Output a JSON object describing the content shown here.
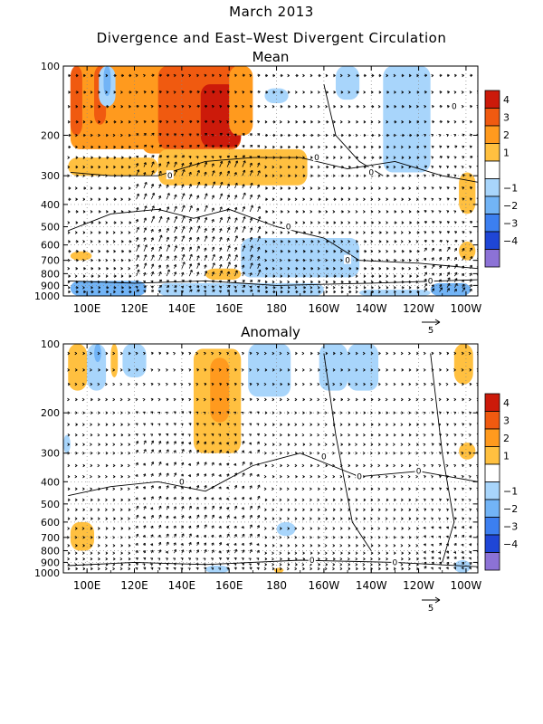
{
  "title": "March 2013",
  "subtitle": "Divergence and East–West Divergent Circulation",
  "colors": {
    "positive": [
      "#ffc040",
      "#ff9a1e",
      "#f05a10",
      "#cc1a0a"
    ],
    "negative": [
      "#a8d5fb",
      "#72b4f6",
      "#3c7ff0",
      "#1f46d6",
      "#8c72d6"
    ]
  },
  "chart_data": [
    {
      "type": "heatmap",
      "title": "Mean",
      "x_ticks": [
        "100E",
        "120E",
        "140E",
        "160E",
        "180",
        "160W",
        "140W",
        "120W",
        "100W"
      ],
      "x_lon": [
        100,
        120,
        140,
        160,
        180,
        200,
        220,
        240,
        260
      ],
      "xlim": [
        90,
        265
      ],
      "y_ticks": [
        "100",
        "200",
        "300",
        "400",
        "500",
        "600",
        "700",
        "800",
        "900",
        "1000"
      ],
      "y_pressure": [
        100,
        200,
        300,
        400,
        500,
        600,
        700,
        800,
        900,
        1000
      ],
      "ylim": [
        100,
        1000
      ],
      "y_scale": "log",
      "grid": true,
      "colorbar": {
        "labels": [
          "4",
          "3",
          "2",
          "1",
          "−1",
          "−2",
          "−3",
          "−4"
        ],
        "levels": [
          4,
          3,
          2,
          1,
          -1,
          -2,
          -3,
          -4
        ]
      },
      "contour_labels": [
        "0",
        "0",
        "0",
        "0",
        "0",
        "0",
        "0"
      ],
      "vector_reference_label": "5",
      "vector_reference_value": 5,
      "regions": [
        {
          "level": 2,
          "lon": [
            93,
            153
          ],
          "p": [
            100,
            230
          ]
        },
        {
          "level": 3,
          "lon": [
            93,
            98
          ],
          "p": [
            100,
            200
          ]
        },
        {
          "level": 3,
          "lon": [
            103,
            108
          ],
          "p": [
            100,
            180
          ]
        },
        {
          "level": 2,
          "lon": [
            112,
            120
          ],
          "p": [
            100,
            200
          ]
        },
        {
          "level": 2,
          "lon": [
            123,
            135
          ],
          "p": [
            100,
            240
          ]
        },
        {
          "level": 3,
          "lon": [
            130,
            165
          ],
          "p": [
            100,
            230
          ]
        },
        {
          "level": 4,
          "lon": [
            148,
            165
          ],
          "p": [
            120,
            225
          ]
        },
        {
          "level": 2,
          "lon": [
            160,
            170
          ],
          "p": [
            100,
            200
          ]
        },
        {
          "level": 1,
          "lon": [
            130,
            193
          ],
          "p": [
            230,
            330
          ]
        },
        {
          "level": 1,
          "lon": [
            92,
            130
          ],
          "p": [
            250,
            300
          ]
        },
        {
          "level": -1,
          "lon": [
            105,
            112
          ],
          "p": [
            100,
            150
          ]
        },
        {
          "level": -2,
          "lon": [
            107,
            110
          ],
          "p": [
            100,
            135
          ]
        },
        {
          "level": -1,
          "lon": [
            175,
            185
          ],
          "p": [
            125,
            145
          ]
        },
        {
          "level": -1,
          "lon": [
            205,
            215
          ],
          "p": [
            100,
            140
          ]
        },
        {
          "level": -1,
          "lon": [
            225,
            245
          ],
          "p": [
            100,
            290
          ]
        },
        {
          "level": -1,
          "lon": [
            165,
            215
          ],
          "p": [
            560,
            830
          ]
        },
        {
          "level": -2,
          "lon": [
            158,
            165
          ],
          "p": [
            900,
            1000
          ]
        },
        {
          "level": -2,
          "lon": [
            93,
            125
          ],
          "p": [
            860,
            1000
          ]
        },
        {
          "level": -1,
          "lon": [
            130,
            200
          ],
          "p": [
            880,
            1000
          ]
        },
        {
          "level": -2,
          "lon": [
            245,
            262
          ],
          "p": [
            880,
            1000
          ]
        },
        {
          "level": -1,
          "lon": [
            215,
            245
          ],
          "p": [
            940,
            1000
          ]
        },
        {
          "level": 1,
          "lon": [
            93,
            102
          ],
          "p": [
            640,
            700
          ]
        },
        {
          "level": 1,
          "lon": [
            150,
            165
          ],
          "p": [
            760,
            850
          ]
        },
        {
          "level": 1,
          "lon": [
            257,
            264
          ],
          "p": [
            290,
            440
          ]
        },
        {
          "level": 1,
          "lon": [
            257,
            264
          ],
          "p": [
            580,
            700
          ]
        }
      ]
    },
    {
      "type": "heatmap",
      "title": "Anomaly",
      "x_ticks": [
        "100E",
        "120E",
        "140E",
        "160E",
        "180",
        "160W",
        "140W",
        "120W",
        "100W"
      ],
      "x_lon": [
        100,
        120,
        140,
        160,
        180,
        200,
        220,
        240,
        260
      ],
      "xlim": [
        90,
        265
      ],
      "y_ticks": [
        "100",
        "200",
        "300",
        "400",
        "500",
        "600",
        "700",
        "800",
        "900",
        "1000"
      ],
      "y_pressure": [
        100,
        200,
        300,
        400,
        500,
        600,
        700,
        800,
        900,
        1000
      ],
      "ylim": [
        100,
        1000
      ],
      "y_scale": "log",
      "grid": true,
      "colorbar": {
        "labels": [
          "4",
          "3",
          "2",
          "1",
          "−1",
          "−2",
          "−3",
          "−4"
        ],
        "levels": [
          4,
          3,
          2,
          1,
          -1,
          -2,
          -3,
          -4
        ]
      },
      "contour_labels": [
        "0",
        "0",
        "0",
        "0",
        "0",
        "0"
      ],
      "vector_reference_label": "5",
      "vector_reference_value": 5,
      "regions": [
        {
          "level": 1,
          "lon": [
            92,
            100
          ],
          "p": [
            100,
            160
          ]
        },
        {
          "level": -1,
          "lon": [
            100,
            108
          ],
          "p": [
            100,
            160
          ]
        },
        {
          "level": -2,
          "lon": [
            103,
            106
          ],
          "p": [
            100,
            120
          ]
        },
        {
          "level": 1,
          "lon": [
            110,
            113
          ],
          "p": [
            100,
            140
          ]
        },
        {
          "level": -1,
          "lon": [
            115,
            125
          ],
          "p": [
            100,
            140
          ]
        },
        {
          "level": 1,
          "lon": [
            145,
            165
          ],
          "p": [
            105,
            300
          ]
        },
        {
          "level": 2,
          "lon": [
            152,
            160
          ],
          "p": [
            115,
            220
          ]
        },
        {
          "level": -1,
          "lon": [
            168,
            186
          ],
          "p": [
            100,
            170
          ]
        },
        {
          "level": -1,
          "lon": [
            198,
            210
          ],
          "p": [
            100,
            160
          ]
        },
        {
          "level": -1,
          "lon": [
            210,
            223
          ],
          "p": [
            100,
            160
          ]
        },
        {
          "level": 1,
          "lon": [
            255,
            263
          ],
          "p": [
            100,
            150
          ]
        },
        {
          "level": 1,
          "lon": [
            257,
            264
          ],
          "p": [
            270,
            320
          ]
        },
        {
          "level": -1,
          "lon": [
            90,
            93
          ],
          "p": [
            250,
            300
          ]
        },
        {
          "level": 1,
          "lon": [
            93,
            103
          ],
          "p": [
            600,
            800
          ]
        },
        {
          "level": -1,
          "lon": [
            180,
            188
          ],
          "p": [
            600,
            690
          ]
        },
        {
          "level": -1,
          "lon": [
            255,
            262
          ],
          "p": [
            880,
            1000
          ]
        },
        {
          "level": -1,
          "lon": [
            150,
            160
          ],
          "p": [
            930,
            1000
          ]
        },
        {
          "level": 1,
          "lon": [
            179,
            183
          ],
          "p": [
            950,
            1000
          ]
        }
      ]
    }
  ]
}
